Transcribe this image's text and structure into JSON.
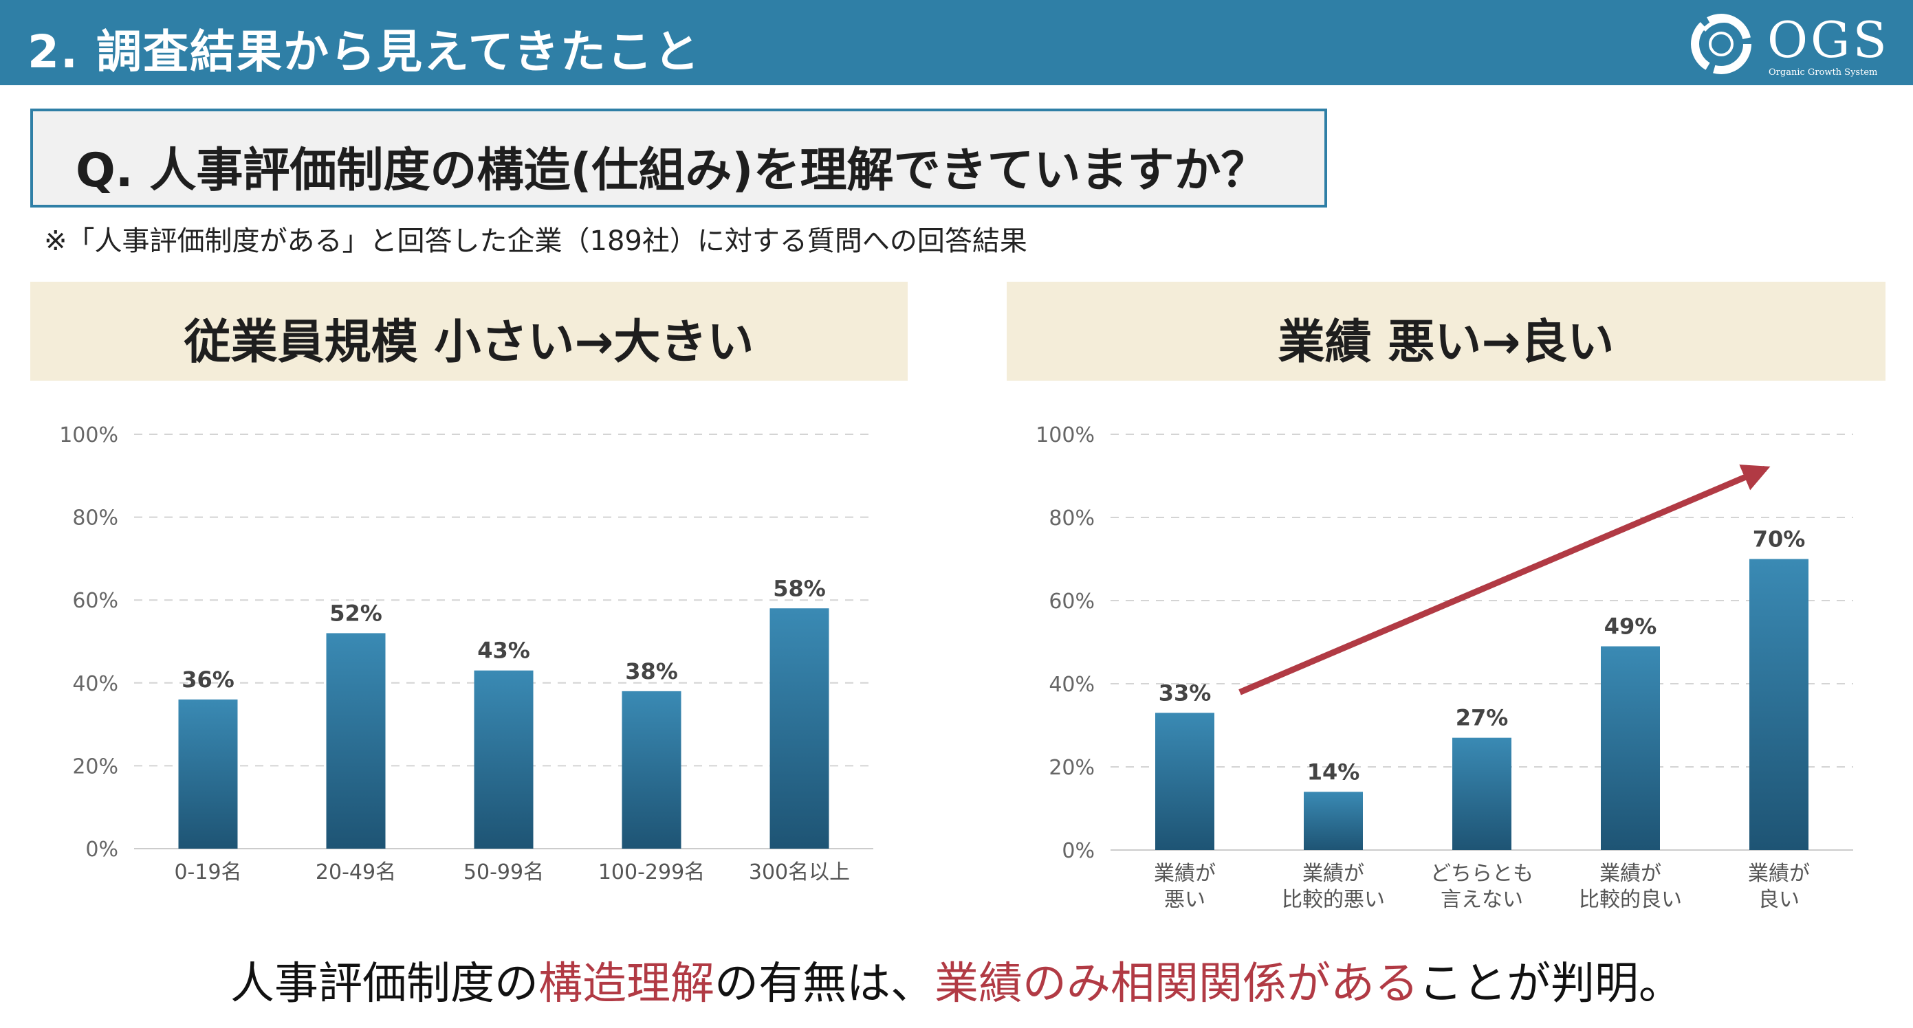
{
  "header": {
    "title": "2. 調査結果から見えてきたこと",
    "logo_text": "OGS",
    "logo_subtext": "Organic Growth System"
  },
  "question": {
    "text": "Q. 人事評価制度の構造(仕組み)を理解できていますか？",
    "note": "※「人事評価制度がある」と回答した企業（189社）に対する質問への回答結果"
  },
  "panels": [
    {
      "title": "従業員規模  小さい→大きい"
    },
    {
      "title": "業績  悪い→良い"
    }
  ],
  "conclusion": {
    "part1": "人事評価制度の",
    "part2": "構造理解",
    "part3": "の有無は、",
    "part4": "業績のみ相関関係がある",
    "part5": "ことが判明。"
  },
  "colors": {
    "header": "#2f7fa6",
    "bar_top": "#3a8ab4",
    "bar_bottom": "#1e5474",
    "highlight": "#b13a44",
    "panel_bg": "#f4edd9"
  },
  "chart_data": [
    {
      "type": "bar",
      "categories": [
        [
          "0-19名"
        ],
        [
          "20-49名"
        ],
        [
          "50-99名"
        ],
        [
          "100-299名"
        ],
        [
          "300名以上"
        ]
      ],
      "values": [
        36,
        52,
        43,
        38,
        58
      ],
      "value_labels": [
        "36%",
        "52%",
        "43%",
        "38%",
        "58%"
      ],
      "ylim": [
        0,
        100
      ],
      "yticks": [
        "0%",
        "20%",
        "40%",
        "60%",
        "80%",
        "100%"
      ],
      "grid": true
    },
    {
      "type": "bar",
      "categories": [
        [
          "業績が",
          "悪い"
        ],
        [
          "業績が",
          "比較的悪い"
        ],
        [
          "どちらとも",
          "言えない"
        ],
        [
          "業績が",
          "比較的良い"
        ],
        [
          "業績が",
          "良い"
        ]
      ],
      "values": [
        33,
        14,
        27,
        49,
        70
      ],
      "value_labels": [
        "33%",
        "14%",
        "27%",
        "49%",
        "70%"
      ],
      "ylim": [
        0,
        100
      ],
      "yticks": [
        "0%",
        "20%",
        "40%",
        "60%",
        "80%",
        "100%"
      ],
      "grid": true,
      "trend_arrow": true
    }
  ]
}
